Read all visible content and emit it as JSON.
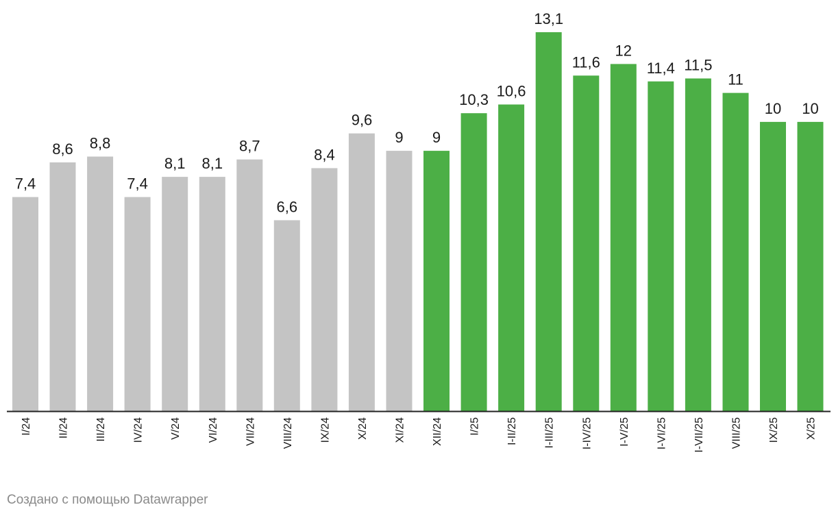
{
  "chart_data": {
    "type": "bar",
    "categories": [
      "I/24",
      "II/24",
      "III/24",
      "IV/24",
      "V/24",
      "VI/24",
      "VII/24",
      "VIII/24",
      "IX/24",
      "X/24",
      "XI/24",
      "XII/24",
      "I/25",
      "I-II/25",
      "I-III/25",
      "I-IV/25",
      "I-V/25",
      "I-VI/25",
      "I-VII/25",
      "VIII/25",
      "IX/25",
      "X/25"
    ],
    "values": [
      7.4,
      8.6,
      8.8,
      7.4,
      8.1,
      8.1,
      8.7,
      6.6,
      8.4,
      9.6,
      9,
      9,
      10.3,
      10.6,
      13.1,
      11.6,
      12,
      11.4,
      11.5,
      11,
      10,
      10
    ],
    "value_labels": [
      "7,4",
      "8,6",
      "8,8",
      "7,4",
      "8,1",
      "8,1",
      "8,7",
      "6,6",
      "8,4",
      "9,6",
      "9",
      "9",
      "10,3",
      "10,6",
      "13,1",
      "11,6",
      "12",
      "11,4",
      "11,5",
      "11",
      "10",
      "10"
    ],
    "series_colors": [
      "#c4c4c4",
      "#c4c4c4",
      "#c4c4c4",
      "#c4c4c4",
      "#c4c4c4",
      "#c4c4c4",
      "#c4c4c4",
      "#c4c4c4",
      "#c4c4c4",
      "#c4c4c4",
      "#c4c4c4",
      "#4caf46",
      "#4caf46",
      "#4caf46",
      "#4caf46",
      "#4caf46",
      "#4caf46",
      "#4caf46",
      "#4caf46",
      "#4caf46",
      "#4caf46",
      "#4caf46"
    ],
    "ylim": [
      0,
      13.1
    ],
    "title": "",
    "xlabel": "",
    "ylabel": "",
    "grid": false
  },
  "footer": {
    "credit": "Создано с помощью Datawrapper"
  },
  "colors": {
    "axis": "#222222",
    "text": "#1a1a1a",
    "muted": "#8a8a8a"
  }
}
